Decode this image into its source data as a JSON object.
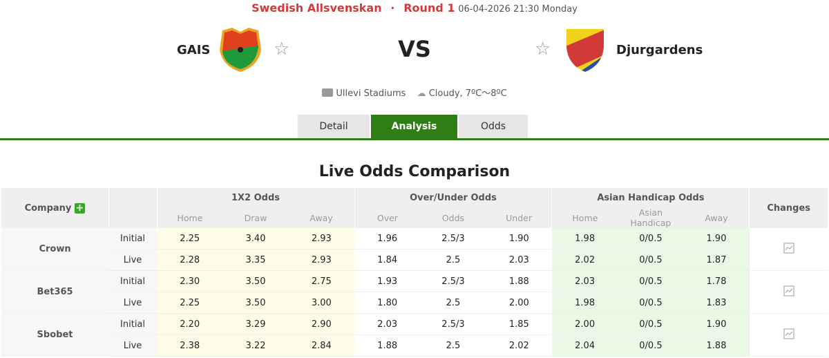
{
  "header": {
    "league": "Swedish Allsvenskan",
    "separator": "·",
    "round": "Round 1",
    "datetime": "06-04-2026 21:30 Monday",
    "home": "GAIS",
    "away": "Djurgardens",
    "vs": "VS",
    "venue": "Ullevi Stadiums",
    "weather": "Cloudy, 7ºC～8ºC"
  },
  "tabs": [
    {
      "label": "Detail"
    },
    {
      "label": "Analysis",
      "active": true
    },
    {
      "label": "Odds"
    }
  ],
  "title": "Live Odds Comparison",
  "colors": {
    "accent": "#2f7d15",
    "league": "#d23a3a"
  },
  "table": {
    "company": "Company",
    "group_1x2": "1X2 Odds",
    "group_ou": "Over/Under Odds",
    "group_ah": "Asian Handicap Odds",
    "changes": "Changes",
    "sub": [
      "Home",
      "Draw",
      "Away",
      "Over",
      "Odds",
      "Under",
      "Home",
      "Asian Handicap",
      "Away"
    ],
    "rows": [
      {
        "company": "Crown",
        "initial": {
          "type": "Initial",
          "v": [
            "2.25",
            "3.40",
            "2.93",
            "1.96",
            "2.5/3",
            "1.90",
            "1.98",
            "0/0.5",
            "1.90"
          ]
        },
        "live": {
          "type": "Live",
          "v": [
            "2.28",
            "3.35",
            "2.93",
            "1.84",
            "2.5",
            "2.03",
            "2.02",
            "0/0.5",
            "1.87"
          ]
        }
      },
      {
        "company": "Bet365",
        "initial": {
          "type": "Initial",
          "v": [
            "2.30",
            "3.50",
            "2.75",
            "1.93",
            "2.5/3",
            "1.88",
            "2.03",
            "0/0.5",
            "1.78"
          ]
        },
        "live": {
          "type": "Live",
          "v": [
            "2.25",
            "3.50",
            "3.00",
            "1.80",
            "2.5",
            "2.00",
            "1.98",
            "0/0.5",
            "1.83"
          ]
        }
      },
      {
        "company": "Sbobet",
        "initial": {
          "type": "Initial",
          "v": [
            "2.20",
            "3.29",
            "2.90",
            "2.03",
            "2.5/3",
            "1.85",
            "2.00",
            "0/0.5",
            "1.90"
          ]
        },
        "live": {
          "type": "Live",
          "v": [
            "2.38",
            "3.22",
            "2.84",
            "1.88",
            "2.5",
            "2.02",
            "2.04",
            "0/0.5",
            "1.88"
          ]
        }
      }
    ]
  }
}
